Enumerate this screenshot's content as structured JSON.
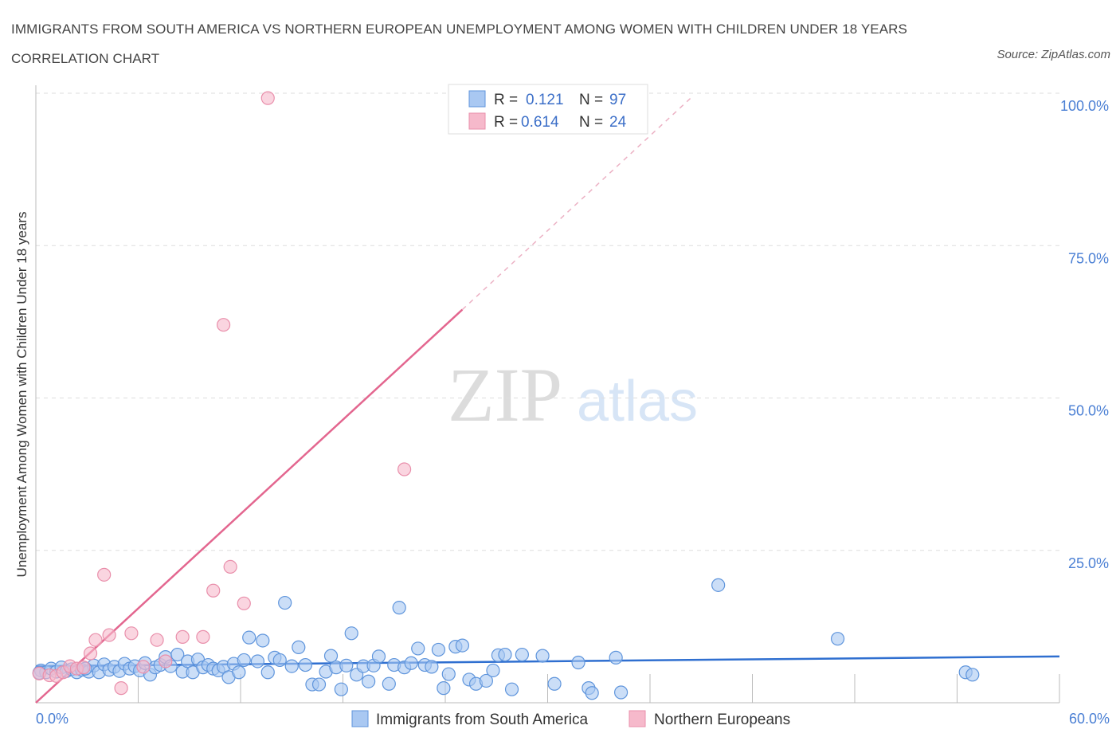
{
  "title": "IMMIGRANTS FROM SOUTH AMERICA VS NORTHERN EUROPEAN UNEMPLOYMENT AMONG WOMEN WITH CHILDREN UNDER 18 YEARS CORRELATION CHART",
  "source": "Source: ZipAtlas.com",
  "watermark": {
    "zip": "ZIP",
    "atlas": "atlas"
  },
  "legend_top": [
    {
      "r_label": "R =",
      "r_value": "0.121",
      "n_label": "N =",
      "n_value": "97",
      "color": "#a9c8f2"
    },
    {
      "r_label": "R =",
      "r_value": "0.614",
      "n_label": "N =",
      "n_value": "24",
      "color": "#f6b9cb"
    }
  ],
  "legend_bottom": [
    "Immigrants from South America",
    "Northern Europeans"
  ],
  "chart_data": {
    "type": "scatter",
    "xlabel": "",
    "ylabel": "Unemployment Among Women with Children Under 18 years",
    "xlim": [
      0,
      60
    ],
    "ylim": [
      0,
      100
    ],
    "x_tick_labels": [
      "0.0%",
      "60.0%"
    ],
    "y_tick_labels": [
      "100.0%",
      "75.0%",
      "50.0%",
      "25.0%"
    ],
    "y_tick_values": [
      100,
      75,
      50,
      25
    ],
    "grid": "horizontal dashed",
    "series": [
      {
        "name": "Immigrants from South America",
        "color": "#a9c8f2",
        "stroke": "#5f95dc",
        "trend_color": "#2f6fd0",
        "trend": {
          "x": [
            0,
            60
          ],
          "y": [
            6.0,
            7.6
          ]
        },
        "points": [
          [
            0.3,
            5.3
          ],
          [
            0.6,
            5.0
          ],
          [
            0.9,
            5.6
          ],
          [
            1.2,
            5.1
          ],
          [
            1.5,
            5.8
          ],
          [
            1.8,
            5.2
          ],
          [
            2.1,
            5.5
          ],
          [
            2.4,
            5.0
          ],
          [
            2.7,
            5.4
          ],
          [
            3.1,
            5.1
          ],
          [
            3.4,
            6.1
          ],
          [
            3.7,
            5.0
          ],
          [
            4.0,
            6.3
          ],
          [
            4.3,
            5.4
          ],
          [
            4.6,
            5.9
          ],
          [
            4.9,
            5.2
          ],
          [
            5.2,
            6.4
          ],
          [
            5.5,
            5.6
          ],
          [
            5.8,
            6.0
          ],
          [
            6.1,
            5.3
          ],
          [
            6.4,
            6.5
          ],
          [
            6.7,
            4.6
          ],
          [
            7.0,
            5.8
          ],
          [
            7.3,
            6.2
          ],
          [
            7.6,
            7.5
          ],
          [
            7.9,
            6.0
          ],
          [
            8.3,
            7.9
          ],
          [
            8.6,
            5.1
          ],
          [
            8.9,
            6.8
          ],
          [
            9.2,
            5.0
          ],
          [
            9.5,
            7.1
          ],
          [
            9.8,
            5.8
          ],
          [
            10.1,
            6.2
          ],
          [
            10.4,
            5.6
          ],
          [
            10.7,
            5.3
          ],
          [
            11.0,
            5.9
          ],
          [
            11.3,
            4.2
          ],
          [
            11.6,
            6.4
          ],
          [
            11.9,
            5.0
          ],
          [
            12.2,
            7.0
          ],
          [
            12.5,
            10.7
          ],
          [
            13.0,
            6.8
          ],
          [
            13.3,
            10.2
          ],
          [
            13.6,
            5.0
          ],
          [
            14.0,
            7.4
          ],
          [
            14.3,
            7.0
          ],
          [
            14.6,
            16.4
          ],
          [
            15.0,
            6.0
          ],
          [
            15.4,
            9.1
          ],
          [
            15.8,
            6.2
          ],
          [
            16.2,
            3.0
          ],
          [
            16.6,
            3.0
          ],
          [
            17.0,
            5.1
          ],
          [
            17.3,
            7.7
          ],
          [
            17.6,
            5.8
          ],
          [
            17.9,
            2.2
          ],
          [
            18.2,
            6.1
          ],
          [
            18.5,
            11.4
          ],
          [
            18.8,
            4.6
          ],
          [
            19.2,
            6.0
          ],
          [
            19.5,
            3.5
          ],
          [
            19.8,
            6.1
          ],
          [
            20.1,
            7.6
          ],
          [
            20.7,
            3.1
          ],
          [
            21.0,
            6.2
          ],
          [
            21.3,
            15.6
          ],
          [
            21.6,
            5.8
          ],
          [
            22.0,
            6.5
          ],
          [
            22.4,
            8.9
          ],
          [
            22.8,
            6.2
          ],
          [
            23.2,
            5.9
          ],
          [
            23.6,
            8.7
          ],
          [
            23.9,
            2.4
          ],
          [
            24.2,
            4.7
          ],
          [
            24.6,
            9.2
          ],
          [
            25.0,
            9.4
          ],
          [
            25.4,
            3.8
          ],
          [
            25.8,
            3.1
          ],
          [
            26.4,
            3.6
          ],
          [
            26.8,
            5.3
          ],
          [
            27.1,
            7.8
          ],
          [
            27.5,
            7.9
          ],
          [
            27.9,
            2.2
          ],
          [
            28.5,
            7.9
          ],
          [
            29.7,
            7.7
          ],
          [
            30.4,
            3.1
          ],
          [
            31.8,
            6.6
          ],
          [
            32.4,
            2.4
          ],
          [
            32.6,
            1.6
          ],
          [
            34.0,
            7.4
          ],
          [
            34.3,
            1.7
          ],
          [
            40.0,
            19.3
          ],
          [
            47.0,
            10.5
          ],
          [
            54.5,
            5.0
          ],
          [
            54.9,
            4.6
          ],
          [
            0.2,
            4.9
          ],
          [
            2.9,
            5.6
          ]
        ]
      },
      {
        "name": "Northern Europeans",
        "color": "#f6b9cb",
        "stroke": "#e98fab",
        "trend_color": "#e3668f",
        "trend": {
          "x": [
            0,
            25
          ],
          "y": [
            0,
            64.5
          ]
        },
        "trend_dashed": {
          "x": [
            25,
            38.5
          ],
          "y": [
            64.5,
            99.5
          ]
        },
        "points": [
          [
            0.2,
            4.8
          ],
          [
            0.8,
            4.5
          ],
          [
            1.2,
            4.4
          ],
          [
            1.6,
            5.0
          ],
          [
            2.0,
            6.0
          ],
          [
            2.4,
            5.6
          ],
          [
            2.8,
            5.8
          ],
          [
            3.2,
            8.1
          ],
          [
            3.5,
            10.3
          ],
          [
            4.0,
            21.0
          ],
          [
            4.3,
            11.1
          ],
          [
            5.0,
            2.4
          ],
          [
            5.6,
            11.4
          ],
          [
            6.3,
            5.9
          ],
          [
            7.1,
            10.3
          ],
          [
            7.6,
            6.8
          ],
          [
            8.6,
            10.8
          ],
          [
            9.8,
            10.8
          ],
          [
            10.4,
            18.4
          ],
          [
            11.0,
            62.0
          ],
          [
            11.4,
            22.3
          ],
          [
            12.2,
            16.3
          ],
          [
            13.6,
            99.2
          ],
          [
            21.6,
            38.3
          ]
        ]
      }
    ]
  }
}
